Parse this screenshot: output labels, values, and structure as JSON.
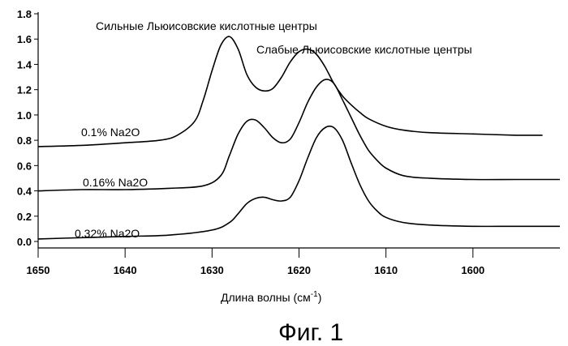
{
  "chart_data": {
    "type": "line",
    "title": "",
    "xlabel": "Длина волны (см",
    "xlabel_sup": "-1",
    "xlabel_close": ")",
    "ylabel": "",
    "xlim": [
      1650,
      1590
    ],
    "ylim": [
      0,
      1.8
    ],
    "x_reversed": true,
    "grid": false,
    "x_ticks": [
      1650,
      1640,
      1630,
      1620,
      1610,
      1600
    ],
    "y_ticks": [
      "0.0",
      "0.2",
      "0.4",
      "0.6",
      "0.8",
      "1.0",
      "1.2",
      "1.4",
      "1.6",
      "1.8"
    ],
    "series": [
      {
        "name": "0.1% Na2O",
        "x": [
          1650,
          1645,
          1640,
          1636,
          1634,
          1632,
          1631,
          1630,
          1629,
          1628,
          1627,
          1626,
          1625,
          1624,
          1623,
          1622,
          1621,
          1620,
          1619,
          1618,
          1617,
          1616,
          1615,
          1614,
          1613,
          1612,
          1610,
          1608,
          1605,
          1600,
          1595,
          1592
        ],
        "y": [
          0.75,
          0.76,
          0.78,
          0.8,
          0.84,
          0.95,
          1.12,
          1.35,
          1.55,
          1.62,
          1.52,
          1.32,
          1.22,
          1.19,
          1.21,
          1.3,
          1.42,
          1.5,
          1.52,
          1.48,
          1.38,
          1.25,
          1.15,
          1.08,
          1.02,
          0.97,
          0.91,
          0.88,
          0.86,
          0.85,
          0.84,
          0.84
        ]
      },
      {
        "name": "0.16% Na2O",
        "x": [
          1650,
          1645,
          1640,
          1635,
          1631,
          1629,
          1628,
          1627,
          1626,
          1625,
          1624,
          1623,
          1622,
          1621,
          1620,
          1619,
          1618,
          1617,
          1616,
          1615,
          1614,
          1613,
          1612,
          1611,
          1610,
          1608,
          1605,
          1600,
          1595,
          1590
        ],
        "y": [
          0.4,
          0.41,
          0.41,
          0.42,
          0.44,
          0.52,
          0.68,
          0.85,
          0.95,
          0.96,
          0.9,
          0.82,
          0.78,
          0.81,
          0.94,
          1.1,
          1.22,
          1.28,
          1.25,
          1.12,
          0.98,
          0.84,
          0.72,
          0.64,
          0.58,
          0.52,
          0.5,
          0.49,
          0.49,
          0.49
        ]
      },
      {
        "name": "0.32% Na2O",
        "x": [
          1650,
          1645,
          1640,
          1635,
          1630,
          1628,
          1627,
          1626,
          1625,
          1624,
          1623,
          1622,
          1621,
          1620,
          1619,
          1618,
          1617,
          1616,
          1615,
          1614,
          1613,
          1612,
          1611,
          1610,
          1608,
          1605,
          1600,
          1595,
          1590
        ],
        "y": [
          0.02,
          0.03,
          0.04,
          0.05,
          0.09,
          0.15,
          0.22,
          0.3,
          0.34,
          0.35,
          0.33,
          0.32,
          0.35,
          0.48,
          0.66,
          0.82,
          0.9,
          0.9,
          0.8,
          0.62,
          0.45,
          0.32,
          0.24,
          0.19,
          0.15,
          0.13,
          0.12,
          0.12,
          0.12
        ]
      }
    ],
    "annotations": [
      {
        "id": "strong",
        "text": "Сильные Льюисовские кислотные центры"
      },
      {
        "id": "weak",
        "text": "Слабые Льюисовские кислотные центры"
      }
    ]
  },
  "caption": "Фиг. 1"
}
